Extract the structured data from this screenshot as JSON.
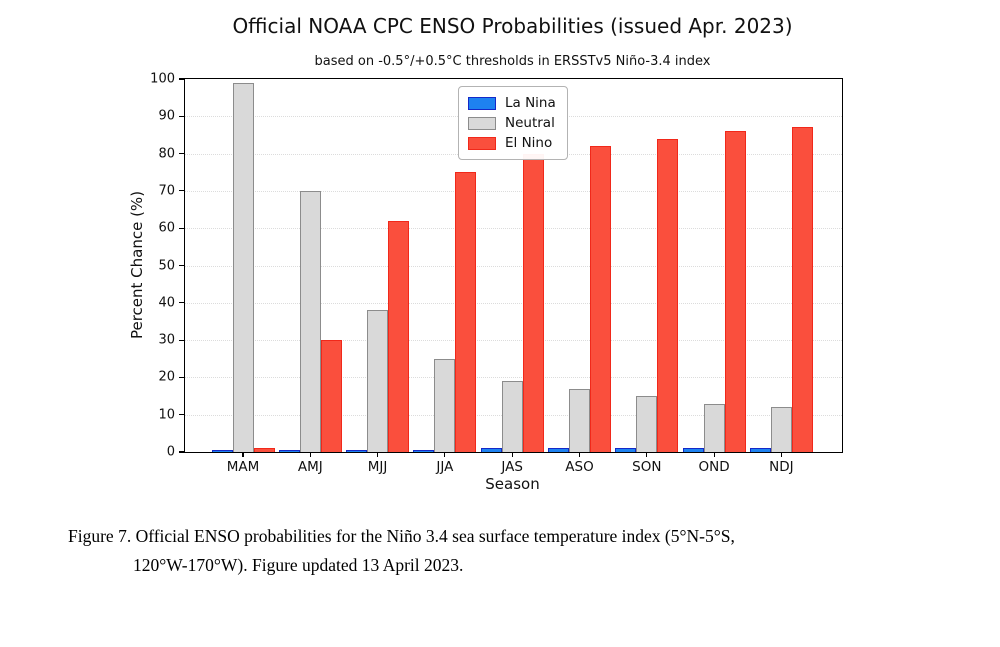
{
  "page": {
    "background": "#ffffff"
  },
  "chart_data": {
    "type": "bar",
    "title": "Official NOAA CPC ENSO Probabilities (issued Apr. 2023)",
    "subtitle": "based on -0.5°/+0.5°C thresholds in ERSSTv5 Niño-3.4 index",
    "xlabel": "Season",
    "ylabel": "Percent Chance (%)",
    "ylim": [
      0,
      100
    ],
    "ytick_step": 10,
    "grid": true,
    "legend_position": "inside upper-center",
    "categories": [
      "MAM",
      "AMJ",
      "MJJ",
      "JJA",
      "JAS",
      "ASO",
      "SON",
      "OND",
      "NDJ"
    ],
    "series": [
      {
        "name": "La Nina",
        "fill": "#1E82F0",
        "edge": "#1428C8",
        "values": [
          0,
          0,
          0,
          0,
          1,
          1,
          1,
          1,
          1
        ]
      },
      {
        "name": "Neutral",
        "fill": "#D9D9D9",
        "edge": "#8C8C8C",
        "values": [
          99,
          70,
          38,
          25,
          19,
          17,
          15,
          13,
          12
        ]
      },
      {
        "name": "El Nino",
        "fill": "#FA4F3D",
        "edge": "#F1281A",
        "values": [
          1,
          30,
          62,
          75,
          80,
          82,
          84,
          86,
          87
        ]
      }
    ]
  },
  "caption": {
    "line1": "Figure 7. Official ENSO probabilities for the Niño 3.4 sea surface temperature index (5°N-5°S,",
    "line2": "120°W-170°W). Figure updated 13 April 2023."
  }
}
